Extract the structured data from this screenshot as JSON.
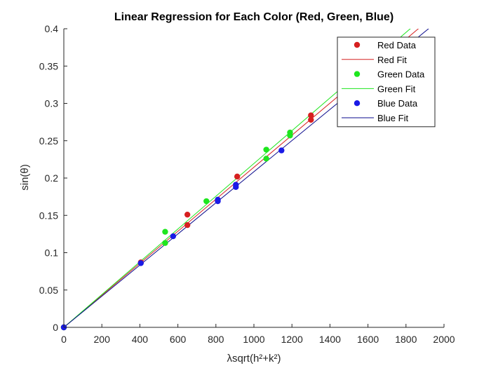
{
  "chart_data": {
    "type": "scatter",
    "title": "Linear Regression for Each Color (Red, Green, Blue)",
    "xlabel": "λsqrt(h²+k²)",
    "ylabel": "sin(θ)",
    "xlim": [
      0,
      2000
    ],
    "ylim": [
      0,
      0.4
    ],
    "xticks": [
      "0",
      "200",
      "400",
      "600",
      "800",
      "1000",
      "1200",
      "1400",
      "1600",
      "1800",
      "2000"
    ],
    "yticks": [
      "0",
      "0.05",
      "0.1",
      "0.15",
      "0.2",
      "0.25",
      "0.3",
      "0.35",
      "0.4"
    ],
    "grid": false,
    "legend_position": "top-right",
    "series": [
      {
        "name": "Red Data",
        "kind": "points",
        "color": "#d62020",
        "points": [
          [
            0,
            0
          ],
          [
            405,
            0.087
          ],
          [
            650,
            0.137
          ],
          [
            650,
            0.151
          ],
          [
            912,
            0.202
          ],
          [
            1300,
            0.278
          ],
          [
            1300,
            0.284
          ]
        ]
      },
      {
        "name": "Red Fit",
        "kind": "line",
        "color": "#d62020",
        "slope": 0.0002145,
        "intercept": 0
      },
      {
        "name": "Green Data",
        "kind": "points",
        "color": "#1ee61e",
        "points": [
          [
            0,
            0
          ],
          [
            533,
            0.113
          ],
          [
            533,
            0.128
          ],
          [
            750,
            0.169
          ],
          [
            1065,
            0.226
          ],
          [
            1065,
            0.238
          ],
          [
            1190,
            0.257
          ],
          [
            1190,
            0.261
          ]
        ]
      },
      {
        "name": "Green Fit",
        "kind": "line",
        "color": "#1ee61e",
        "slope": 0.0002195,
        "intercept": 0
      },
      {
        "name": "Blue Data",
        "kind": "points",
        "color": "#1a1ae6",
        "points": [
          [
            0,
            0
          ],
          [
            405,
            0.086
          ],
          [
            575,
            0.122
          ],
          [
            810,
            0.169
          ],
          [
            810,
            0.171
          ],
          [
            905,
            0.188
          ],
          [
            905,
            0.191
          ],
          [
            1145,
            0.237
          ]
        ]
      },
      {
        "name": "Blue Fit",
        "kind": "line",
        "color": "#0b0b8c",
        "slope": 0.0002085,
        "intercept": 0
      }
    ]
  }
}
